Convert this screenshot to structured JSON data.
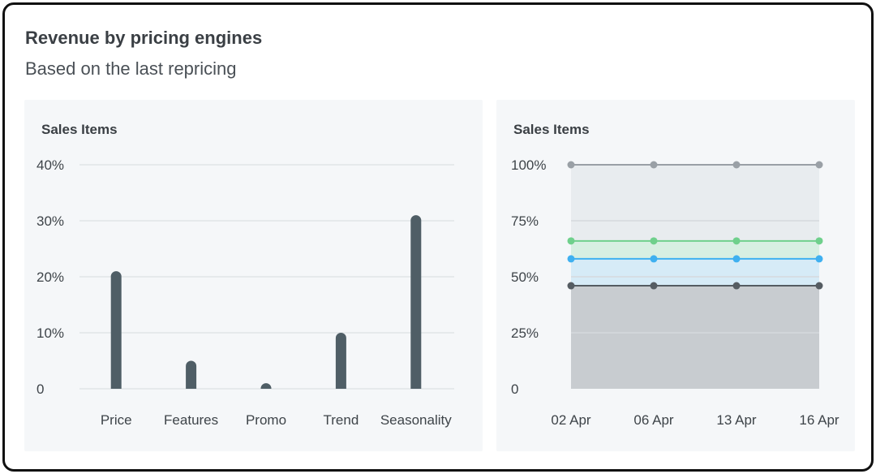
{
  "header": {
    "title": "Revenue by pricing engines",
    "subtitle": "Based on the last repricing"
  },
  "chart_data": [
    {
      "type": "bar",
      "title": "Sales Items",
      "categories": [
        "Price",
        "Features",
        "Promo",
        "Trend",
        "Seasonality"
      ],
      "values": [
        21,
        5,
        1,
        10,
        31
      ],
      "ylim": [
        0,
        40
      ],
      "yticks": [
        0,
        10,
        20,
        30,
        40
      ],
      "ytick_labels": [
        "0",
        "10%",
        "20%",
        "30%",
        "40%"
      ],
      "grid": true,
      "bar_color": "#4f5e66"
    },
    {
      "type": "area",
      "title": "Sales Items",
      "x": [
        "02 Apr",
        "06 Apr",
        "13 Apr",
        "16 Apr"
      ],
      "series": [
        {
          "values": [
            100,
            100,
            100,
            100
          ],
          "color": "#9aa0a6",
          "fill": "#e8ecef"
        },
        {
          "values": [
            66,
            66,
            66,
            66
          ],
          "color": "#6fd08c",
          "fill": "#d7efe2"
        },
        {
          "values": [
            58,
            58,
            58,
            58
          ],
          "color": "#3fb0f0",
          "fill": "#d6ebf7"
        },
        {
          "values": [
            46,
            46,
            46,
            46
          ],
          "color": "#555c62",
          "fill": "#c8ccd0"
        }
      ],
      "ylim": [
        0,
        100
      ],
      "yticks": [
        0,
        25,
        50,
        75,
        100
      ],
      "ytick_labels": [
        "0",
        "25%",
        "50%",
        "75%",
        "100%"
      ],
      "grid": true
    }
  ]
}
